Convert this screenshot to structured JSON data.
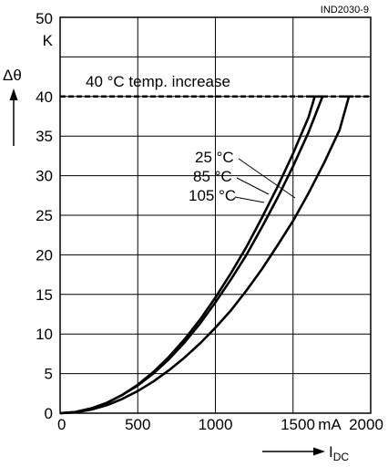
{
  "chart_data": {
    "type": "line",
    "figure_id": "IND2030-9",
    "y_unit": "K",
    "y_symbol": "Δθ",
    "x_unit": "mA",
    "x_label_main": "I",
    "x_label_sub": "DC",
    "xlim": [
      0,
      2000
    ],
    "ylim": [
      0,
      50
    ],
    "x_ticks": [
      0,
      500,
      1000,
      1500,
      2000
    ],
    "y_ticks": [
      0,
      5,
      10,
      15,
      20,
      25,
      30,
      35,
      40,
      45,
      50
    ],
    "grid": true,
    "threshold": {
      "label": "40 °C temp. increase",
      "value": 40
    },
    "series_labels": [
      "25 °C",
      "85 °C",
      "105 °C"
    ],
    "series": [
      {
        "name": "25 °C",
        "x": [
          0,
          100,
          200,
          300,
          400,
          500,
          600,
          700,
          800,
          900,
          1000,
          1100,
          1200,
          1300,
          1400,
          1500,
          1600,
          1640
        ],
        "y": [
          0,
          0.15,
          0.6,
          1.3,
          2.3,
          3.6,
          5.2,
          7.1,
          9.3,
          11.8,
          14.6,
          17.7,
          21.0,
          24.7,
          28.6,
          32.8,
          37.4,
          40
        ]
      },
      {
        "name": "85 °C",
        "x": [
          0,
          100,
          200,
          300,
          400,
          500,
          600,
          700,
          800,
          900,
          1000,
          1100,
          1200,
          1300,
          1400,
          1500,
          1600,
          1690
        ],
        "y": [
          0,
          0.15,
          0.6,
          1.3,
          2.3,
          3.5,
          5.0,
          6.8,
          8.9,
          11.3,
          14.0,
          16.9,
          20.0,
          23.5,
          27.2,
          31.2,
          35.5,
          40
        ]
      },
      {
        "name": "105 °C",
        "x": [
          0,
          100,
          200,
          300,
          400,
          500,
          600,
          700,
          800,
          900,
          1000,
          1100,
          1200,
          1300,
          1400,
          1500,
          1600,
          1700,
          1800,
          1860
        ],
        "y": [
          0,
          0.1,
          0.45,
          1.0,
          1.8,
          2.8,
          4.0,
          5.4,
          7.0,
          8.8,
          10.8,
          13.0,
          15.5,
          18.2,
          21.2,
          24.3,
          27.8,
          31.6,
          35.8,
          40
        ]
      }
    ]
  }
}
